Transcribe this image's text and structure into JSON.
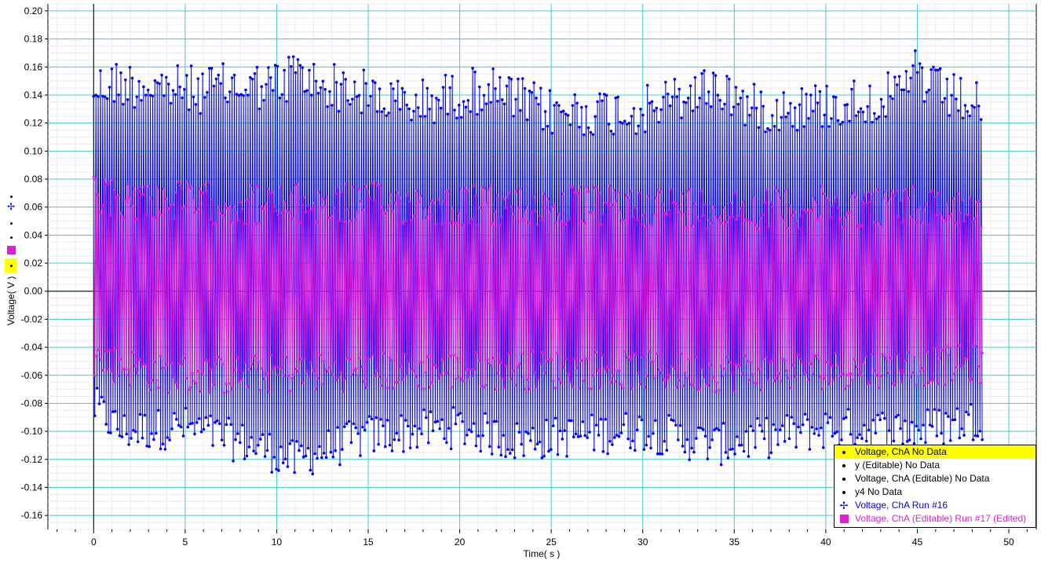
{
  "chart_data": {
    "type": "line",
    "xlabel": "Time( s )",
    "ylabel": "Voltage( V )",
    "xlim": [
      -2.5,
      51.5
    ],
    "ylim": [
      -0.17,
      0.205
    ],
    "x_ticks": [
      0,
      5,
      10,
      15,
      20,
      25,
      30,
      35,
      40,
      45,
      50
    ],
    "y_ticks": [
      -0.16,
      -0.14,
      -0.12,
      -0.1,
      -0.08,
      -0.06,
      -0.04,
      -0.02,
      0.0,
      0.02,
      0.04,
      0.06,
      0.08,
      0.1,
      0.12,
      0.14,
      0.16,
      0.18,
      0.2
    ],
    "x_tick_labels": [
      "0",
      "5",
      "10",
      "15",
      "20",
      "25",
      "30",
      "35",
      "40",
      "45",
      "50"
    ],
    "y_tick_labels": [
      "-0.16",
      "-0.14",
      "-0.12",
      "-0.10",
      "-0.08",
      "-0.06",
      "-0.04",
      "-0.02",
      "0.00",
      "0.02",
      "0.04",
      "0.06",
      "0.08",
      "0.10",
      "0.12",
      "0.14",
      "0.16",
      "0.18",
      "0.20"
    ],
    "grid": true,
    "legend_position": "bottom-right",
    "series": [
      {
        "name": "Voltage, ChA No Data",
        "color": "#000000",
        "marker": "dot",
        "highlight": "#ffff00",
        "points": []
      },
      {
        "name": "y (Editable) No Data",
        "color": "#000000",
        "marker": "dot",
        "points": []
      },
      {
        "name": "Voltage, ChA (Editable) No Data",
        "color": "#000000",
        "marker": "dot",
        "points": []
      },
      {
        "name": "y4 No Data",
        "color": "#000000",
        "marker": "dot",
        "points": []
      },
      {
        "name": "Voltage, ChA Run #16",
        "color": "#0000ff",
        "marker": "crosshair-dot",
        "x_range": [
          0,
          48.6
        ],
        "envelope_high": [
          {
            "x": 0.1,
            "y": 0.162
          },
          {
            "x": 0.9,
            "y": 0.166
          },
          {
            "x": 2.5,
            "y": 0.165
          },
          {
            "x": 5.0,
            "y": 0.161
          },
          {
            "x": 7.5,
            "y": 0.163
          },
          {
            "x": 10.4,
            "y": 0.165
          },
          {
            "x": 11.0,
            "y": 0.177
          },
          {
            "x": 11.5,
            "y": 0.168
          },
          {
            "x": 15.0,
            "y": 0.158
          },
          {
            "x": 17.2,
            "y": 0.15
          },
          {
            "x": 21.3,
            "y": 0.162
          },
          {
            "x": 25.0,
            "y": 0.145
          },
          {
            "x": 30.0,
            "y": 0.146
          },
          {
            "x": 34.0,
            "y": 0.164
          },
          {
            "x": 36.0,
            "y": 0.148
          },
          {
            "x": 40.0,
            "y": 0.15
          },
          {
            "x": 44.5,
            "y": 0.158
          },
          {
            "x": 44.8,
            "y": 0.183
          },
          {
            "x": 45.5,
            "y": 0.163
          },
          {
            "x": 48.5,
            "y": 0.148
          }
        ],
        "envelope_low": [
          {
            "x": 0.1,
            "y": -0.098
          },
          {
            "x": 1.5,
            "y": -0.115
          },
          {
            "x": 5.0,
            "y": -0.112
          },
          {
            "x": 9.5,
            "y": -0.128
          },
          {
            "x": 11.0,
            "y": -0.137
          },
          {
            "x": 11.8,
            "y": -0.132
          },
          {
            "x": 15.0,
            "y": -0.118
          },
          {
            "x": 20.0,
            "y": -0.112
          },
          {
            "x": 23.0,
            "y": -0.122
          },
          {
            "x": 30.0,
            "y": -0.114
          },
          {
            "x": 34.0,
            "y": -0.125
          },
          {
            "x": 40.0,
            "y": -0.113
          },
          {
            "x": 45.0,
            "y": -0.114
          },
          {
            "x": 48.5,
            "y": -0.106
          }
        ]
      },
      {
        "name": "Voltage, ChA (Editable) Run #17 (Edited)",
        "color": "#e01ed8",
        "marker": "square",
        "x_range": [
          0,
          48.6
        ],
        "envelope_high": [
          {
            "x": 0.1,
            "y": 0.082
          },
          {
            "x": 5.0,
            "y": 0.079
          },
          {
            "x": 10.0,
            "y": 0.076
          },
          {
            "x": 15.0,
            "y": 0.078
          },
          {
            "x": 20.0,
            "y": 0.076
          },
          {
            "x": 25.0,
            "y": 0.075
          },
          {
            "x": 30.0,
            "y": 0.076
          },
          {
            "x": 35.0,
            "y": 0.074
          },
          {
            "x": 40.0,
            "y": 0.075
          },
          {
            "x": 45.0,
            "y": 0.076
          },
          {
            "x": 48.5,
            "y": 0.074
          }
        ],
        "envelope_low": [
          {
            "x": 0.1,
            "y": -0.062
          },
          {
            "x": 3.5,
            "y": -0.073
          },
          {
            "x": 7.0,
            "y": -0.074
          },
          {
            "x": 12.0,
            "y": -0.072
          },
          {
            "x": 18.0,
            "y": -0.071
          },
          {
            "x": 23.0,
            "y": -0.07
          },
          {
            "x": 28.0,
            "y": -0.07
          },
          {
            "x": 33.0,
            "y": -0.072
          },
          {
            "x": 38.0,
            "y": -0.071
          },
          {
            "x": 43.0,
            "y": -0.069
          },
          {
            "x": 48.5,
            "y": -0.066
          }
        ]
      }
    ]
  }
}
